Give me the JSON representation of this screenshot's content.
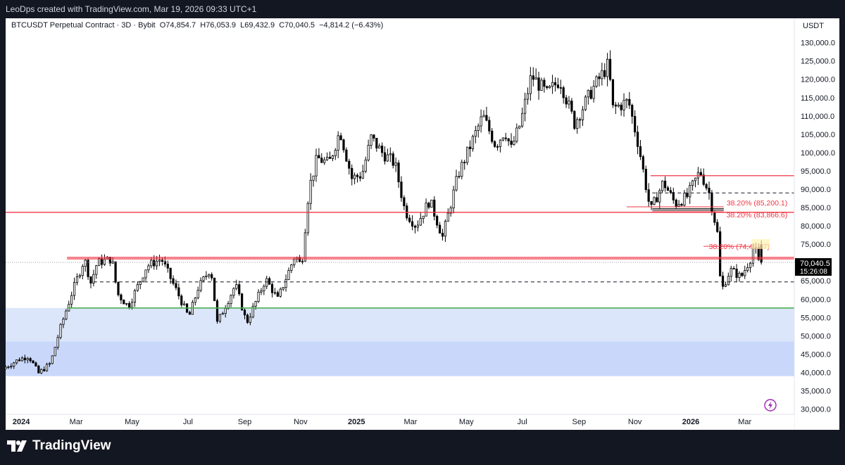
{
  "header": {
    "attribution": "LeoDps created with TradingView.com, Mar 19, 2026 09:33 UTC+1"
  },
  "legend": {
    "symbol": "BTCUSDT Perpetual Contract · 3D · Bybit",
    "open_label": "O",
    "open": "74,854.7",
    "high_label": "H",
    "high": "76,053.9",
    "low_label": "L",
    "low": "69,432.9",
    "close_label": "C",
    "close": "70,040.5",
    "change": "−4,814.2 (−6.43%)"
  },
  "price_axis": {
    "currency": "USDT",
    "current_price": "70,040.5",
    "countdown": "15:26:08"
  },
  "footer": {
    "brand": "TradingView"
  },
  "colors": {
    "up": "#ffffff",
    "down": "#000000",
    "resistance": "#f23645",
    "support": "#4caf50",
    "zone_light": "#dbe6fb",
    "zone_dark": "#c9d8fa",
    "price_label_bg": "#000000"
  },
  "chart_data": {
    "type": "candlestick",
    "symbol": "BTCUSDT",
    "interval": "3D",
    "exchange": "Bybit",
    "ylim": [
      28000,
      130500
    ],
    "y_ticks": [
      30000,
      35000,
      40000,
      45000,
      50000,
      55000,
      60000,
      65000,
      70000,
      75000,
      80000,
      85000,
      90000,
      95000,
      100000,
      105000,
      110000,
      115000,
      120000,
      125000,
      130000
    ],
    "y_tick_labels": [
      "30,000.0",
      "35,000.0",
      "40,000.0",
      "45,000.0",
      "50,000.0",
      "55,000.0",
      "60,000.0",
      "65,000.0",
      "70,000.0",
      "75,000.0",
      "80,000.0",
      "85,000.0",
      "90,000.0",
      "95,000.0",
      "100,000.0",
      "105,000.0",
      "110,000.0",
      "115,000.0",
      "120,000.0",
      "125,000.0",
      "130,000.0"
    ],
    "x_start": "2023-12-15",
    "x_end": "2026-04-24",
    "x_ticks": [
      {
        "date": "2024-01-01",
        "label": "2024",
        "bold": true
      },
      {
        "date": "2024-03-01",
        "label": "Mar"
      },
      {
        "date": "2024-05-01",
        "label": "May"
      },
      {
        "date": "2024-07-01",
        "label": "Jul"
      },
      {
        "date": "2024-09-01",
        "label": "Sep"
      },
      {
        "date": "2024-11-01",
        "label": "Nov"
      },
      {
        "date": "2025-01-01",
        "label": "2025",
        "bold": true
      },
      {
        "date": "2025-03-01",
        "label": "Mar"
      },
      {
        "date": "2025-05-01",
        "label": "May"
      },
      {
        "date": "2025-07-01",
        "label": "Jul"
      },
      {
        "date": "2025-09-01",
        "label": "Sep"
      },
      {
        "date": "2025-11-01",
        "label": "Nov"
      },
      {
        "date": "2026-01-01",
        "label": "2026",
        "bold": true
      },
      {
        "date": "2026-03-01",
        "label": "Mar"
      }
    ],
    "price_path": [
      [
        "2023-12-15",
        41000
      ],
      [
        "2024-01-01",
        43500
      ],
      [
        "2024-01-12",
        44500
      ],
      [
        "2024-01-23",
        39800
      ],
      [
        "2024-02-05",
        42500
      ],
      [
        "2024-02-15",
        51500
      ],
      [
        "2024-02-28",
        61500
      ],
      [
        "2024-03-13",
        71000
      ],
      [
        "2024-03-20",
        64500
      ],
      [
        "2024-03-27",
        70000
      ],
      [
        "2024-04-12",
        71000
      ],
      [
        "2024-04-18",
        61500
      ],
      [
        "2024-04-30",
        58000
      ],
      [
        "2024-05-20",
        69000
      ],
      [
        "2024-06-05",
        71000
      ],
      [
        "2024-06-24",
        61000
      ],
      [
        "2024-07-05",
        55000
      ],
      [
        "2024-07-15",
        63000
      ],
      [
        "2024-07-29",
        68500
      ],
      [
        "2024-08-05",
        53500
      ],
      [
        "2024-08-25",
        64000
      ],
      [
        "2024-09-06",
        53500
      ],
      [
        "2024-09-27",
        65500
      ],
      [
        "2024-10-10",
        60000
      ],
      [
        "2024-10-29",
        72000
      ],
      [
        "2024-11-05",
        69000
      ],
      [
        "2024-11-13",
        90000
      ],
      [
        "2024-11-22",
        98500
      ],
      [
        "2024-12-05",
        97000
      ],
      [
        "2024-12-17",
        106000
      ],
      [
        "2024-12-30",
        93000
      ],
      [
        "2025-01-10",
        94000
      ],
      [
        "2025-01-20",
        104000
      ],
      [
        "2025-02-01",
        100000
      ],
      [
        "2025-02-15",
        97000
      ],
      [
        "2025-02-26",
        84000
      ],
      [
        "2025-03-10",
        80000
      ],
      [
        "2025-03-25",
        87000
      ],
      [
        "2025-04-08",
        77000
      ],
      [
        "2025-04-25",
        94000
      ],
      [
        "2025-05-22",
        110000
      ],
      [
        "2025-06-05",
        102000
      ],
      [
        "2025-06-15",
        106000
      ],
      [
        "2025-06-22",
        101000
      ],
      [
        "2025-07-02",
        108000
      ],
      [
        "2025-07-14",
        121000
      ],
      [
        "2025-07-31",
        116000
      ],
      [
        "2025-08-14",
        120000
      ],
      [
        "2025-08-30",
        108000
      ],
      [
        "2025-09-18",
        117000
      ],
      [
        "2025-10-06",
        124000
      ],
      [
        "2025-10-11",
        112000
      ],
      [
        "2025-10-28",
        114000
      ],
      [
        "2025-11-08",
        102000
      ],
      [
        "2025-11-21",
        84000
      ],
      [
        "2025-12-05",
        92000
      ],
      [
        "2025-12-18",
        86000
      ],
      [
        "2025-12-31",
        88000
      ],
      [
        "2026-01-14",
        95000
      ],
      [
        "2026-01-24",
        89000
      ],
      [
        "2026-02-02",
        78000
      ],
      [
        "2026-02-06",
        62000
      ],
      [
        "2026-02-16",
        68000
      ],
      [
        "2026-02-28",
        66000
      ],
      [
        "2026-03-10",
        71000
      ],
      [
        "2026-03-14",
        74900
      ],
      [
        "2026-03-19",
        70040
      ]
    ],
    "last_candle": {
      "date": "2026-03-19",
      "open": 74854.7,
      "high": 76053.9,
      "low": 69432.9,
      "close": 70040.5
    },
    "current_price": 70040.5,
    "annotations": {
      "red_lines": [
        {
          "price": 83700,
          "from": "2023-12-15",
          "to": "2026-04-24"
        },
        {
          "price": 71400,
          "from": "2024-02-20",
          "to": "2026-04-24"
        },
        {
          "price": 71000,
          "from": "2024-02-20",
          "to": "2026-04-24"
        },
        {
          "price": 93700,
          "from": "2025-11-18",
          "to": "2026-04-24"
        }
      ],
      "green_lines": [
        {
          "price": 57600,
          "from": "2024-02-20",
          "to": "2026-04-24"
        }
      ],
      "dashed_lines": [
        {
          "price": 64700,
          "from": "2024-03-20",
          "to": "2026-04-24"
        },
        {
          "price": 89000,
          "from": "2025-11-20",
          "to": "2026-04-24"
        }
      ],
      "dotted_lines": [
        {
          "price": 70040.5,
          "from": "2023-12-15",
          "to": "2026-04-24"
        }
      ],
      "black_lines": [
        {
          "price": 84700,
          "from": "2025-11-20",
          "to": "2026-02-06"
        },
        {
          "price": 84300,
          "from": "2025-11-20",
          "to": "2026-02-06"
        }
      ],
      "zones": [
        {
          "from_price": 48500,
          "to_price": 57600,
          "shade": "light"
        },
        {
          "from_price": 39000,
          "to_price": 48500,
          "shade": "dark"
        }
      ],
      "fib_lines": [
        {
          "price": 85200,
          "from": "2025-10-23",
          "to": "2026-02-06",
          "label": "38.20% (85,200.1)"
        },
        {
          "price": 83866,
          "from": "2025-11-20",
          "to": "2026-02-06",
          "label": "38.20% (83,866.6)"
        },
        {
          "price": 74432,
          "from": "2026-01-15",
          "to": "2026-03-14",
          "label": "38.20% (74,432.7)"
        }
      ]
    }
  }
}
